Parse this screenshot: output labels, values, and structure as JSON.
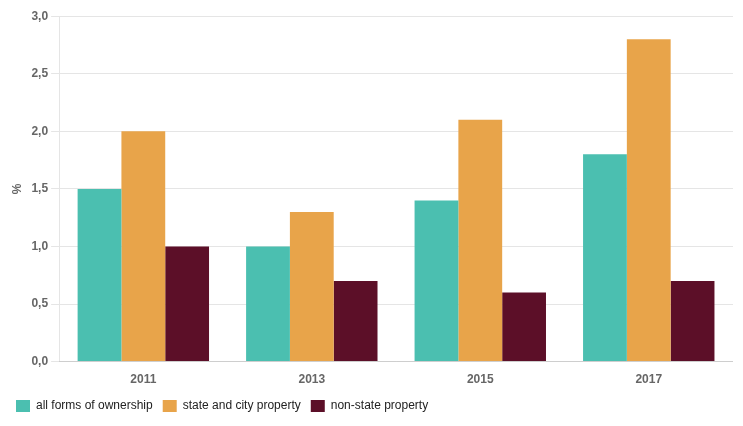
{
  "chart_data": {
    "type": "bar",
    "categories": [
      "2011",
      "2013",
      "2015",
      "2017"
    ],
    "series": [
      {
        "name": "all forms of ownership",
        "color": "#4BBFB0",
        "values": [
          1.5,
          1.0,
          1.4,
          1.8
        ]
      },
      {
        "name": "state and city property",
        "color": "#E8A44A",
        "values": [
          2.0,
          1.3,
          2.1,
          2.8
        ]
      },
      {
        "name": "non-state property",
        "color": "#5C0F28",
        "values": [
          1.0,
          0.7,
          0.6,
          0.7
        ]
      }
    ],
    "ylabel": "%",
    "ylim": [
      0,
      3.0
    ],
    "yticks": [
      {
        "value": 0.0,
        "label": "0,0"
      },
      {
        "value": 0.5,
        "label": "0,5"
      },
      {
        "value": 1.0,
        "label": "1,0"
      },
      {
        "value": 1.5,
        "label": "1,5"
      },
      {
        "value": 2.0,
        "label": "2,0"
      },
      {
        "value": 2.5,
        "label": "2,5"
      },
      {
        "value": 3.0,
        "label": "3,0"
      }
    ],
    "grid": true,
    "legend": "bottom"
  }
}
